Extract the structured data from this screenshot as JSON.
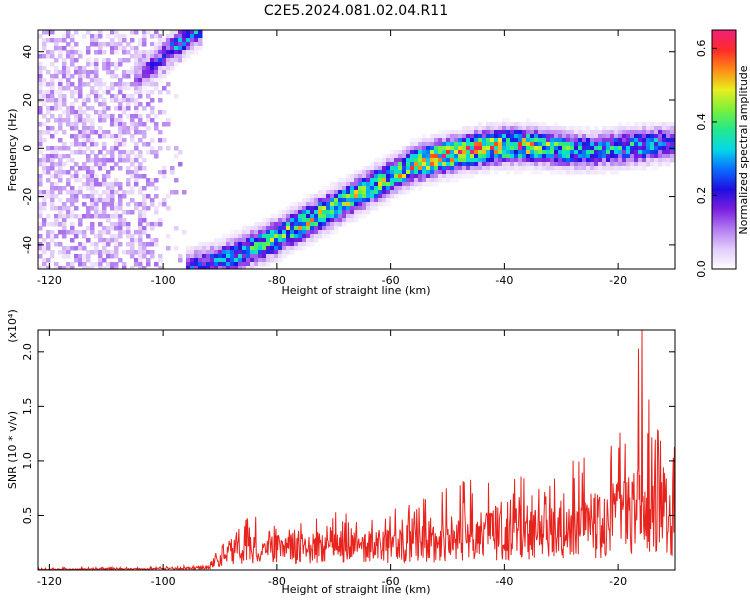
{
  "title": "C2E5.2024.081.02.04.R11",
  "colors": {
    "background": "#ffffff",
    "snr_line": "#e8221c",
    "colormap": [
      "#ffffff",
      "#e2ccfa",
      "#b27cf0",
      "#7a1fe0",
      "#1d0fe0",
      "#0a6cff",
      "#06d8e6",
      "#23e88c",
      "#7cf03a",
      "#e8ee1e",
      "#ff8a16",
      "#ff2a2a",
      "#f0207a"
    ]
  },
  "chart_data": [
    {
      "type": "heatmap",
      "xlabel": "Height of straight line (km)",
      "ylabel": "Frequency (Hz)",
      "xlim": [
        -122,
        -10
      ],
      "ylim": [
        -50,
        49
      ],
      "xticks": [
        -120,
        -100,
        -80,
        -60,
        -40,
        -20
      ],
      "yticks": [
        -40,
        -20,
        0,
        20,
        40
      ],
      "grid": false,
      "colorbar": {
        "label": "Normalized spectral amplitude",
        "range": [
          0.0,
          0.65
        ],
        "ticks": [
          "0.0",
          "0.2",
          "0.4",
          "0.6"
        ],
        "tick_values": [
          0.0,
          0.2,
          0.4,
          0.6
        ],
        "placement": "right"
      },
      "ridge": {
        "x": [
          -96,
          -92,
          -88,
          -84,
          -80,
          -76,
          -72,
          -68,
          -64,
          -60,
          -56,
          -52,
          -48,
          -44,
          -40,
          -36,
          -32,
          -28,
          -24,
          -20,
          -16,
          -12,
          -10
        ],
        "y": [
          -50,
          -48,
          -45,
          -41,
          -37,
          -32,
          -27,
          -22,
          -17,
          -12,
          -7,
          -4,
          -2,
          0,
          1,
          1,
          0,
          -1,
          -1,
          0,
          1,
          2,
          2
        ],
        "peak_amplitude": [
          0.25,
          0.3,
          0.35,
          0.4,
          0.45,
          0.5,
          0.5,
          0.48,
          0.45,
          0.48,
          0.55,
          0.6,
          0.62,
          0.6,
          0.62,
          0.55,
          0.45,
          0.4,
          0.35,
          0.35,
          0.38,
          0.3,
          0.25
        ]
      },
      "upper_band": {
        "x": [
          -104,
          -102,
          -100,
          -98,
          -96,
          -94
        ],
        "y": [
          30,
          34,
          38,
          42,
          46,
          49
        ],
        "peak_amplitude": [
          0.15,
          0.2,
          0.25,
          0.3,
          0.35,
          0.3
        ]
      },
      "noise_region": {
        "x": [
          -122,
          -96
        ],
        "y": [
          -50,
          49
        ],
        "amplitude_max": 0.12
      }
    },
    {
      "type": "line",
      "xlabel": "Height of straight line (km)",
      "ylabel": "SNR (10 * v/v)",
      "yscale_label": "(x10⁴)",
      "xlim": [
        -122,
        -10
      ],
      "ylim": [
        0,
        2.2
      ],
      "xticks": [
        -120,
        -100,
        -80,
        -60,
        -40,
        -20
      ],
      "yticks": [
        0.5,
        1.0,
        1.5,
        2.0
      ],
      "ytick_labels": [
        "0.5",
        "1.0",
        "1.5",
        "2.0"
      ],
      "grid": false,
      "series": [
        {
          "envelope_x": [
            -122,
            -100,
            -92,
            -90,
            -88,
            -85,
            -80,
            -75,
            -70,
            -65,
            -60,
            -55,
            -50,
            -45,
            -40,
            -35,
            -30,
            -25,
            -20,
            -18,
            -16,
            -14,
            -12,
            -10
          ],
          "envelope_mean": [
            0.005,
            0.01,
            0.02,
            0.12,
            0.18,
            0.2,
            0.19,
            0.2,
            0.21,
            0.22,
            0.22,
            0.26,
            0.3,
            0.33,
            0.34,
            0.35,
            0.37,
            0.4,
            0.48,
            0.52,
            0.58,
            0.56,
            0.55,
            0.5
          ],
          "envelope_peak": [
            0.02,
            0.03,
            0.05,
            0.25,
            0.3,
            0.52,
            0.42,
            0.45,
            0.55,
            0.5,
            0.55,
            0.65,
            0.78,
            0.88,
            0.8,
            0.9,
            0.95,
            1.1,
            1.3,
            1.45,
            2.2,
            1.4,
            1.4,
            1.2
          ]
        }
      ]
    }
  ]
}
